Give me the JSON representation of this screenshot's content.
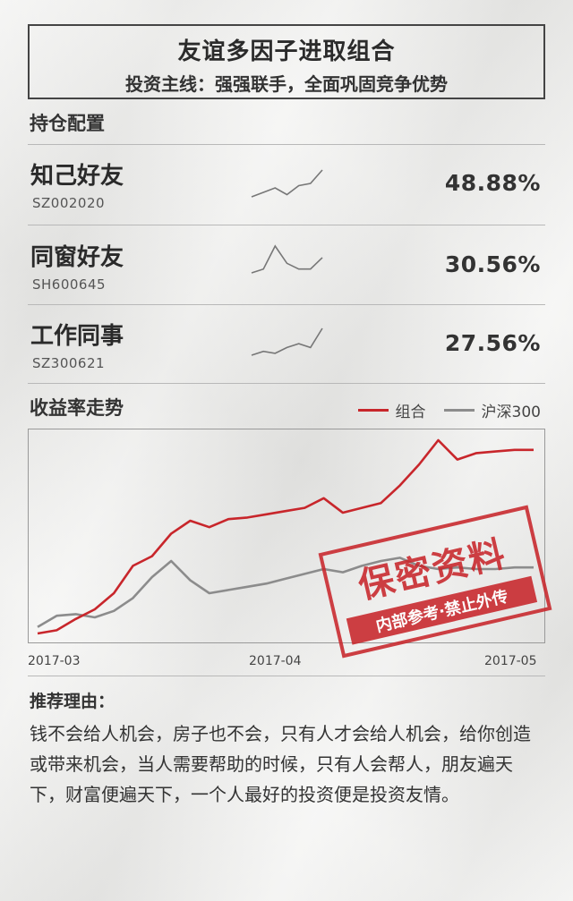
{
  "header": {
    "title": "友谊多因子进取组合",
    "subtitle": "投资主线：强强联手，全面巩固竞争优势"
  },
  "holdings_section": {
    "title": "持仓配置",
    "items": [
      {
        "name": "知己好友",
        "code": "SZ002020",
        "weight": "48.88%",
        "spark": [
          4,
          5,
          6,
          4.5,
          6.5,
          7,
          10
        ]
      },
      {
        "name": "同窗好友",
        "code": "SH600645",
        "weight": "30.56%",
        "spark": [
          3,
          4,
          10,
          5.5,
          4,
          4,
          7
        ]
      },
      {
        "name": "工作同事",
        "code": "SZ300621",
        "weight": "27.56%",
        "spark": [
          3,
          4,
          3.5,
          5,
          6,
          5,
          10
        ]
      }
    ]
  },
  "returns_section": {
    "title": "收益率走势",
    "legend": [
      {
        "label": "组合",
        "color": "#c8262b"
      },
      {
        "label": "沪深300",
        "color": "#8c8c8c"
      }
    ]
  },
  "chart_data": {
    "type": "line",
    "x_tick_labels": [
      "2017-03",
      "2017-04",
      "2017-05"
    ],
    "series": [
      {
        "name": "组合",
        "color": "#c8262b",
        "values": [
          0,
          2,
          9,
          15,
          25,
          42,
          48,
          62,
          70,
          66,
          71,
          72,
          74,
          76,
          78,
          84,
          75,
          78,
          81,
          92,
          105,
          120,
          108,
          112,
          113,
          114,
          114
        ]
      },
      {
        "name": "沪深300",
        "color": "#8c8c8c",
        "values": [
          4,
          11,
          12,
          10,
          14,
          22,
          35,
          45,
          33,
          25,
          27,
          29,
          31,
          34,
          37,
          40,
          38,
          42,
          45,
          47,
          42,
          40,
          41,
          40,
          40,
          41,
          41
        ]
      }
    ]
  },
  "stamp": {
    "main": "保密资料",
    "sub": "内部参考·禁止外传"
  },
  "reason": {
    "title": "推荐理由：",
    "text": "钱不会给人机会，房子也不会，只有人才会给人机会，给你创造或带来机会，当人需要帮助的时候，只有人会帮人，朋友遍天下，财富便遍天下，一个人最好的投资便是投资友情。"
  }
}
